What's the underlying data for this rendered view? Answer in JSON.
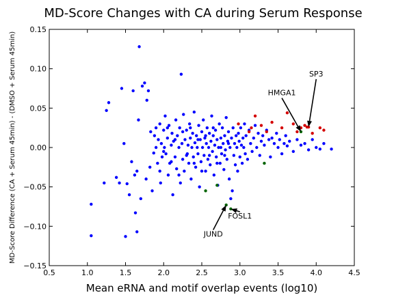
{
  "chart_data": {
    "type": "scatter",
    "title": "MD-Score Changes with CA during Serum Response",
    "xlabel": "Mean eRNA and motif overlap events (log10)",
    "ylabel": "MD-Score Difference (CA + Serum 45min) - (DMSO + Serum 45min)",
    "xlim": [
      0.5,
      4.5
    ],
    "ylim": [
      -0.15,
      0.15
    ],
    "xticks": [
      "0.5",
      "1.0",
      "1.5",
      "2.0",
      "2.5",
      "3.0",
      "3.5",
      "4.0",
      "4.5"
    ],
    "yticks": [
      "0.15",
      "0.10",
      "0.05",
      "0.00",
      "−0.05",
      "−0.10",
      "−0.15"
    ],
    "grid": false,
    "series": [
      {
        "color": "#0000ff",
        "points": [
          [
            1.05,
            -0.072
          ],
          [
            1.05,
            -0.112
          ],
          [
            1.22,
            -0.045
          ],
          [
            1.25,
            0.047
          ],
          [
            1.28,
            0.057
          ],
          [
            1.38,
            -0.038
          ],
          [
            1.42,
            -0.045
          ],
          [
            1.45,
            0.075
          ],
          [
            1.48,
            0.005
          ],
          [
            1.5,
            -0.113
          ],
          [
            1.52,
            -0.046
          ],
          [
            1.55,
            -0.06
          ],
          [
            1.58,
            -0.018
          ],
          [
            1.6,
            0.072
          ],
          [
            1.62,
            -0.035
          ],
          [
            1.63,
            -0.083
          ],
          [
            1.65,
            -0.107
          ],
          [
            1.65,
            -0.03
          ],
          [
            1.67,
            0.035
          ],
          [
            1.68,
            0.128
          ],
          [
            1.7,
            -0.065
          ],
          [
            1.72,
            0.078
          ],
          [
            1.75,
            0.082
          ],
          [
            1.77,
            -0.04
          ],
          [
            1.78,
            0.06
          ],
          [
            1.8,
            0.072
          ],
          [
            1.82,
            -0.025
          ],
          [
            1.83,
            0.02
          ],
          [
            1.85,
            -0.055
          ],
          [
            1.87,
            -0.007
          ],
          [
            1.88,
            0.015
          ],
          [
            1.9,
            0.0
          ],
          [
            1.92,
            -0.02
          ],
          [
            1.93,
            0.01
          ],
          [
            1.95,
            0.03
          ],
          [
            1.96,
            -0.045
          ],
          [
            1.97,
            0.005
          ],
          [
            1.98,
            -0.012
          ],
          [
            2.0,
            0.022
          ],
          [
            2.01,
            0.0
          ],
          [
            2.02,
            0.04
          ],
          [
            2.03,
            -0.008
          ],
          [
            2.05,
            0.012
          ],
          [
            2.06,
            -0.035
          ],
          [
            2.07,
            0.028
          ],
          [
            2.08,
            -0.02
          ],
          [
            2.1,
            0.003
          ],
          [
            2.11,
            0.018
          ],
          [
            2.12,
            -0.06
          ],
          [
            2.13,
            0.008
          ],
          [
            2.15,
            -0.012
          ],
          [
            2.16,
            0.035
          ],
          [
            2.17,
            -0.027
          ],
          [
            2.18,
            0.015
          ],
          [
            2.2,
            0.0
          ],
          [
            2.21,
            0.025
          ],
          [
            2.22,
            -0.045
          ],
          [
            2.23,
            0.093
          ],
          [
            2.24,
            0.005
          ],
          [
            2.25,
            -0.015
          ],
          [
            2.26,
            0.042
          ],
          [
            2.27,
            -0.03
          ],
          [
            2.28,
            0.01
          ],
          [
            2.3,
            0.022
          ],
          [
            2.31,
            -0.008
          ],
          [
            2.32,
            0.003
          ],
          [
            2.33,
            -0.02
          ],
          [
            2.34,
            0.03
          ],
          [
            2.35,
            0.012
          ],
          [
            2.36,
            -0.04
          ],
          [
            2.37,
            0.0
          ],
          [
            2.38,
            0.018
          ],
          [
            2.39,
            -0.012
          ],
          [
            2.4,
            0.045
          ],
          [
            2.41,
            0.006
          ],
          [
            2.42,
            -0.025
          ],
          [
            2.43,
            0.015
          ],
          [
            2.44,
            0.0
          ],
          [
            2.45,
            -0.008
          ],
          [
            2.46,
            0.028
          ],
          [
            2.47,
            -0.05
          ],
          [
            2.48,
            0.01
          ],
          [
            2.49,
            -0.018
          ],
          [
            2.5,
            0.02
          ],
          [
            2.51,
            0.0
          ],
          [
            2.52,
            0.035
          ],
          [
            2.53,
            -0.01
          ],
          [
            2.54,
            0.012
          ],
          [
            2.55,
            -0.03
          ],
          [
            2.56,
            0.005
          ],
          [
            2.57,
            0.025
          ],
          [
            2.58,
            -0.015
          ],
          [
            2.59,
            0.0
          ],
          [
            2.6,
            0.018
          ],
          [
            2.61,
            -0.022
          ],
          [
            2.62,
            0.008
          ],
          [
            2.63,
            0.04
          ],
          [
            2.64,
            -0.005
          ],
          [
            2.65,
            0.015
          ],
          [
            2.66,
            -0.035
          ],
          [
            2.67,
            0.003
          ],
          [
            2.68,
            0.022
          ],
          [
            2.69,
            -0.012
          ],
          [
            2.7,
            0.01
          ],
          [
            2.71,
            -0.048
          ],
          [
            2.72,
            0.0
          ],
          [
            2.73,
            0.03
          ],
          [
            2.74,
            -0.02
          ],
          [
            2.75,
            0.012
          ],
          [
            2.76,
            -0.008
          ],
          [
            2.77,
            0.025
          ],
          [
            2.78,
            0.005
          ],
          [
            2.79,
            -0.028
          ],
          [
            2.8,
            0.015
          ],
          [
            2.81,
            -0.003
          ],
          [
            2.82,
            0.038
          ],
          [
            2.83,
            -0.015
          ],
          [
            2.84,
            0.008
          ],
          [
            2.85,
            0.02
          ],
          [
            2.86,
            -0.04
          ],
          [
            2.87,
            0.0
          ],
          [
            2.88,
            -0.065
          ],
          [
            2.89,
            0.012
          ],
          [
            2.9,
            -0.055
          ],
          [
            2.91,
            0.025
          ],
          [
            2.92,
            -0.01
          ],
          [
            2.93,
            0.005
          ],
          [
            2.94,
            -0.022
          ],
          [
            2.95,
            0.015
          ],
          [
            2.96,
            0.0
          ],
          [
            2.97,
            -0.03
          ],
          [
            2.98,
            0.018
          ],
          [
            2.99,
            0.008
          ],
          [
            3.0,
            -0.012
          ],
          [
            3.01,
            0.025
          ],
          [
            3.02,
            0.003
          ],
          [
            3.03,
            -0.02
          ],
          [
            3.04,
            0.012
          ],
          [
            3.05,
            0.0
          ],
          [
            3.06,
            0.03
          ],
          [
            3.07,
            -0.008
          ],
          [
            3.08,
            0.015
          ],
          [
            3.1,
            -0.015
          ],
          [
            3.12,
            0.022
          ],
          [
            3.14,
            0.005
          ],
          [
            3.16,
            -0.005
          ],
          [
            3.18,
            0.012
          ],
          [
            3.2,
            0.028
          ],
          [
            3.22,
            0.0
          ],
          [
            3.24,
            0.018
          ],
          [
            3.26,
            -0.01
          ],
          [
            3.28,
            0.008
          ],
          [
            3.3,
            0.015
          ],
          [
            3.32,
            0.003
          ],
          [
            3.35,
            0.022
          ],
          [
            3.38,
            0.01
          ],
          [
            3.4,
            -0.012
          ],
          [
            3.42,
            0.012
          ],
          [
            3.45,
            0.005
          ],
          [
            3.48,
            0.018
          ],
          [
            3.5,
            0.0
          ],
          [
            3.52,
            0.01
          ],
          [
            3.55,
            -0.008
          ],
          [
            3.58,
            0.005
          ],
          [
            3.6,
            0.015
          ],
          [
            3.62,
            0.002
          ],
          [
            3.65,
            0.008
          ],
          [
            3.7,
            -0.005
          ],
          [
            3.75,
            0.01
          ],
          [
            3.8,
            0.003
          ],
          [
            3.85,
            0.005
          ],
          [
            3.9,
            -0.003
          ],
          [
            3.95,
            0.01
          ],
          [
            4.0,
            0.0
          ],
          [
            4.05,
            -0.002
          ],
          [
            4.1,
            0.005
          ],
          [
            4.2,
            -0.002
          ],
          [
            1.9,
            0.025
          ],
          [
            1.95,
            -0.03
          ],
          [
            2.0,
            -0.005
          ],
          [
            2.05,
            0.025
          ],
          [
            2.1,
            -0.018
          ],
          [
            2.15,
            0.01
          ],
          [
            2.2,
            -0.035
          ],
          [
            2.25,
            0.02
          ],
          [
            2.3,
            -0.01
          ],
          [
            2.35,
            0.025
          ],
          [
            2.4,
            -0.02
          ],
          [
            2.45,
            0.01
          ],
          [
            2.5,
            -0.03
          ],
          [
            2.55,
            0.015
          ],
          [
            2.6,
            -0.01
          ],
          [
            2.65,
            0.025
          ],
          [
            2.7,
            -0.02
          ],
          [
            2.75,
            0.0
          ],
          [
            2.8,
            -0.01
          ],
          [
            2.85,
            0.005
          ]
        ]
      },
      {
        "color": "#d40000",
        "points": [
          [
            2.98,
            0.03
          ],
          [
            3.12,
            0.02
          ],
          [
            3.15,
            0.025
          ],
          [
            3.2,
            0.04
          ],
          [
            3.28,
            0.028
          ],
          [
            3.35,
            0.02
          ],
          [
            3.42,
            0.032
          ],
          [
            3.55,
            0.025
          ],
          [
            3.62,
            0.044
          ],
          [
            3.7,
            0.03
          ],
          [
            3.75,
            0.02
          ],
          [
            3.8,
            0.025
          ],
          [
            3.85,
            0.028
          ],
          [
            3.88,
            0.026
          ],
          [
            3.9,
            0.026
          ],
          [
            3.95,
            0.018
          ],
          [
            4.05,
            0.025
          ],
          [
            4.1,
            0.022
          ]
        ]
      },
      {
        "color": "#006400",
        "points": [
          [
            2.55,
            -0.055
          ],
          [
            2.7,
            -0.048
          ],
          [
            2.82,
            -0.073
          ],
          [
            2.88,
            -0.078
          ],
          [
            3.32,
            -0.02
          ],
          [
            3.8,
            0.02
          ]
        ]
      }
    ],
    "annotations": [
      {
        "text": "SP3",
        "xy": [
          3.9,
          0.026
        ],
        "xytext": [
          4.0,
          0.092
        ]
      },
      {
        "text": "HMGA1",
        "xy": [
          3.8,
          0.02
        ],
        "xytext": [
          3.55,
          0.068
        ]
      },
      {
        "text": "FOSL1",
        "xy": [
          2.88,
          -0.078
        ],
        "xytext": [
          3.0,
          -0.092
        ]
      },
      {
        "text": "JUND",
        "xy": [
          2.82,
          -0.073
        ],
        "xytext": [
          2.65,
          -0.115
        ]
      }
    ]
  }
}
